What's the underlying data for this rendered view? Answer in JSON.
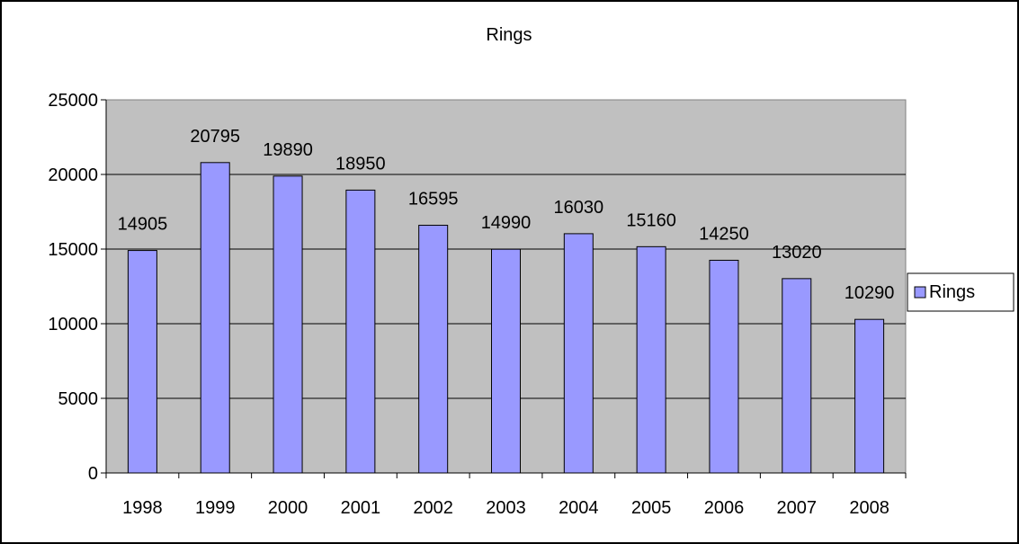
{
  "chart_data": {
    "type": "bar",
    "title": "Rings",
    "xlabel": "",
    "ylabel": "",
    "categories": [
      "1998",
      "1999",
      "2000",
      "2001",
      "2002",
      "2003",
      "2004",
      "2005",
      "2006",
      "2007",
      "2008"
    ],
    "series": [
      {
        "name": "Rings",
        "values": [
          14905,
          20795,
          19890,
          18950,
          16595,
          14990,
          16030,
          15160,
          14250,
          13020,
          10290
        ],
        "color": "#9999ff"
      }
    ],
    "data_labels": [
      "14905",
      "20795",
      "19890",
      "18950",
      "16595",
      "14990",
      "16030",
      "15160",
      "14250",
      "13020",
      "10290"
    ],
    "ylim": [
      0,
      25000
    ],
    "yticks": [
      0,
      5000,
      10000,
      15000,
      20000,
      25000
    ],
    "ytick_labels": [
      "0",
      "5000",
      "10000",
      "15000",
      "20000",
      "25000"
    ],
    "grid": true,
    "plot_background": "#c0c0c0",
    "legend": {
      "position": "right",
      "labels": [
        "Rings"
      ]
    }
  }
}
